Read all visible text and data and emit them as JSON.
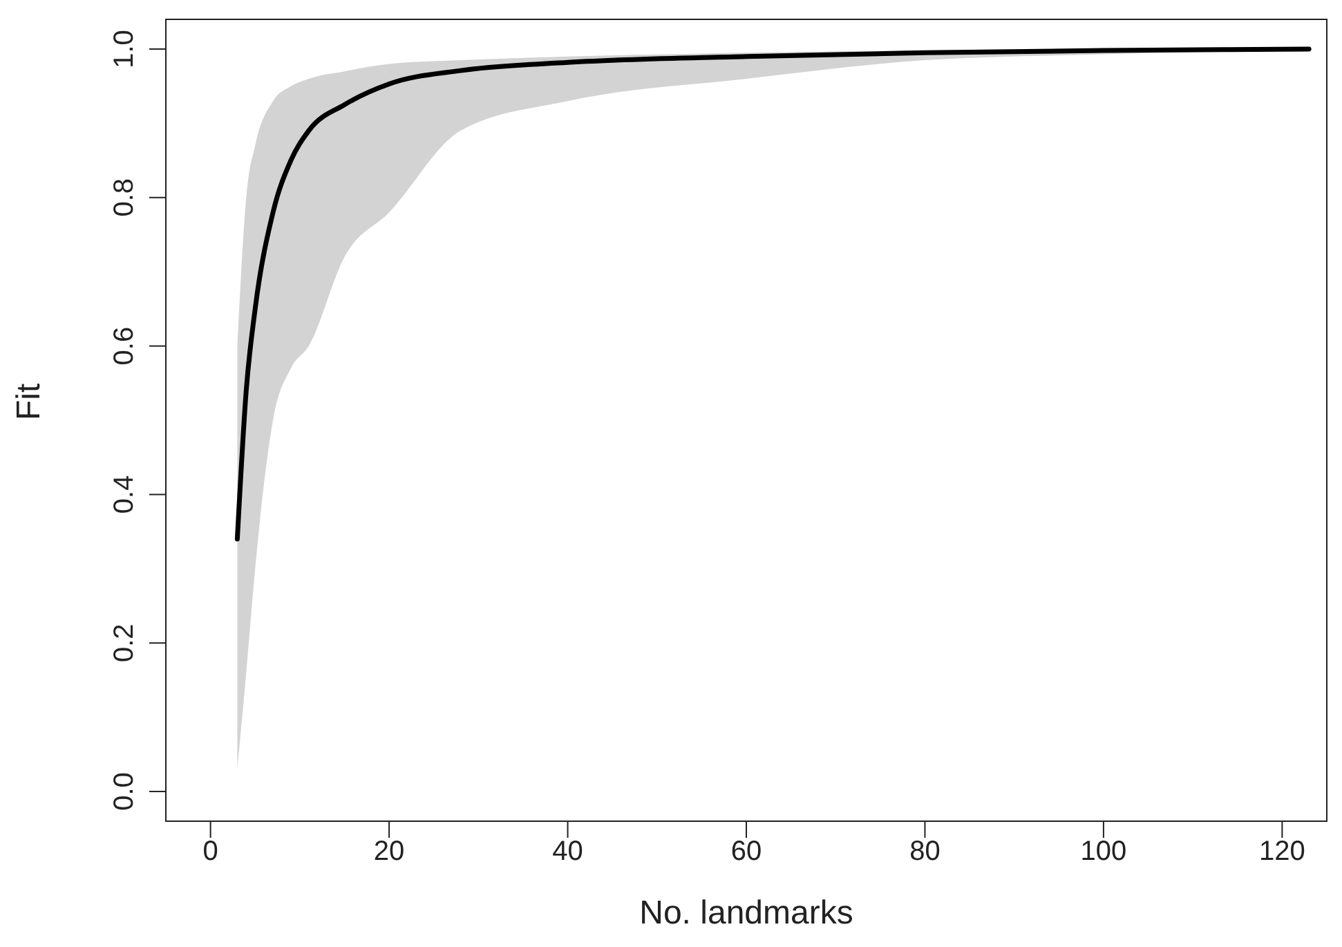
{
  "chart_data": {
    "type": "line",
    "xlabel": "No. landmarks",
    "ylabel": "Fit",
    "xlim": [
      -5,
      125
    ],
    "xticks": [
      0,
      20,
      40,
      60,
      80,
      100,
      120
    ],
    "ylim": [
      -0.04,
      1.04
    ],
    "yticks": [
      {
        "value": 0,
        "label": "0.0"
      },
      {
        "value": 0.2,
        "label": "0.2"
      },
      {
        "value": 0.4,
        "label": "0.4"
      },
      {
        "value": 0.6,
        "label": "0.6"
      },
      {
        "value": 0.8,
        "label": "0.8"
      },
      {
        "value": 1,
        "label": "1.0"
      }
    ],
    "grid": false,
    "legend": false,
    "marker": "none",
    "line_style": "solid",
    "series": [
      {
        "color": "#000000",
        "x": [
          3,
          4,
          5,
          7,
          9,
          11,
          15,
          20,
          28,
          40,
          60,
          80,
          100,
          123
        ],
        "values": [
          0.34,
          0.54,
          0.65,
          0.78,
          0.85,
          0.89,
          0.925,
          0.953,
          0.971,
          0.982,
          0.99,
          0.995,
          0.998,
          1.0
        ],
        "lower": [
          0.03,
          0.16,
          0.3,
          0.5,
          0.57,
          0.6,
          0.72,
          0.78,
          0.89,
          0.93,
          0.96,
          0.985,
          0.993,
          1.0
        ],
        "upper": [
          0.6,
          0.8,
          0.87,
          0.93,
          0.95,
          0.96,
          0.97,
          0.98,
          0.985,
          0.99,
          0.995,
          0.998,
          1.0,
          1.0
        ]
      }
    ]
  }
}
